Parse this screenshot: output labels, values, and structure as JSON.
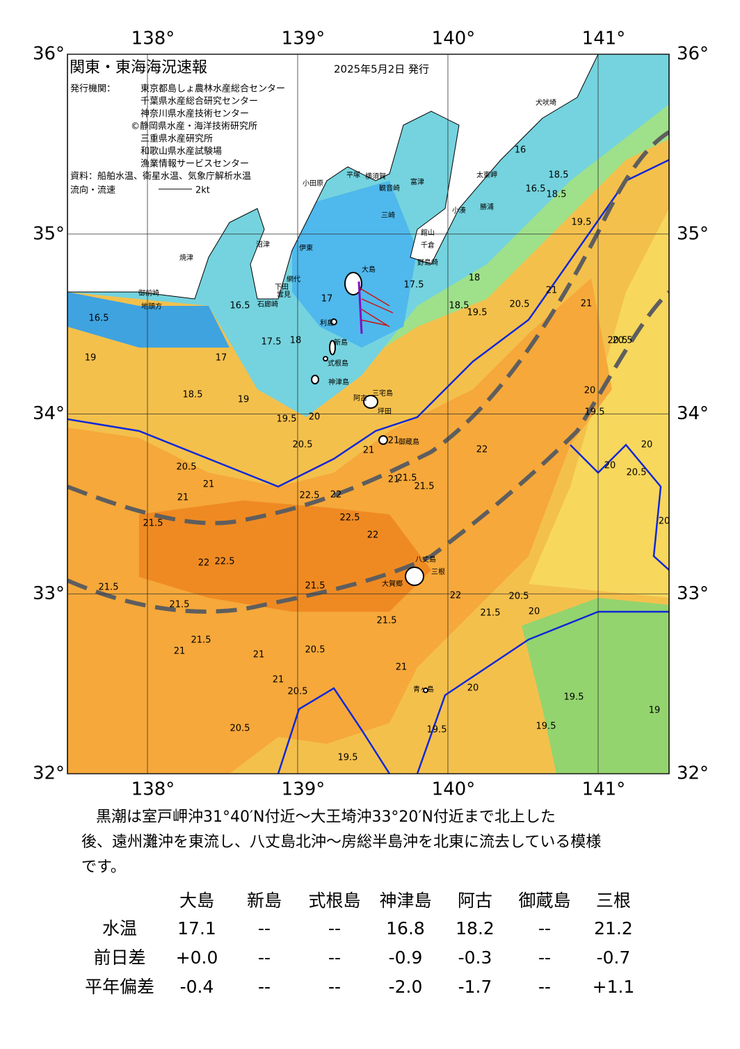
{
  "header": {
    "title": "関東・東海海況速報",
    "date": "2025年5月2日 発行",
    "issuers_label": "発行機関：",
    "issuers": [
      "東京都島しょ農林水産総合センター",
      "千葉県水産総合研究センター",
      "神奈川県水産技術センター",
      "©静岡県水産・海洋技術研究所",
      "三重県水産研究所",
      "和歌山県水産試験場",
      "漁業情報サービスセンター"
    ],
    "source": "資料：船舶水温、衛星水温、気象庁解析水温",
    "legend_label": "流向・流速",
    "legend_scale": "2kt"
  },
  "map": {
    "lon_ticks": [
      {
        "value": 138,
        "label": "138°"
      },
      {
        "value": 139,
        "label": "139°"
      },
      {
        "value": 140,
        "label": "140°"
      },
      {
        "value": 141,
        "label": "141°"
      }
    ],
    "lat_ticks": [
      {
        "value": 36,
        "label": "36°"
      },
      {
        "value": 35,
        "label": "35°"
      },
      {
        "value": 34,
        "label": "34°"
      },
      {
        "value": 33,
        "label": "33°"
      },
      {
        "value": 32,
        "label": "32°"
      }
    ],
    "places": [
      "犬吠埼",
      "太東岬",
      "勝浦",
      "小湊",
      "館山",
      "千倉",
      "野島崎",
      "富津",
      "観音崎",
      "横須賀",
      "平塚",
      "小田原",
      "三崎",
      "大島",
      "利島",
      "新島",
      "式根島",
      "神津島",
      "三宅島",
      "阿古",
      "坪田",
      "御蔵島",
      "八丈島",
      "大賀郷",
      "三根",
      "青ヶ島",
      "沼津",
      "伊東",
      "網代",
      "下田",
      "石廊崎",
      "雲見",
      "焼津",
      "地頭方",
      "御前崎"
    ],
    "contour_labels": [
      16.5,
      16.5,
      16,
      16.5,
      18.5,
      18.5,
      19.5,
      17,
      17.5,
      18,
      18.5,
      19.5,
      20.5,
      21,
      21,
      20.5,
      19,
      17.5,
      18,
      17,
      18.5,
      19,
      19.5,
      20,
      20.5,
      21,
      21,
      22,
      21.5,
      21,
      20.5,
      21,
      21.5,
      22,
      22.5,
      22.5,
      22,
      22.5,
      22,
      21.5,
      21.5,
      21.5,
      21.5,
      21,
      21,
      20.5,
      21.5,
      21,
      20.5,
      19.5,
      19.5,
      20,
      19.5,
      19.5,
      19,
      20,
      20.5,
      20,
      20.5,
      19.5,
      20,
      22,
      21.5,
      20.5,
      20,
      21.5,
      21,
      21,
      20.5,
      20
    ]
  },
  "summary": [
    "黒潮は室戸岬沖31°40′N付近～大王埼沖33°20′N付近まで北上した",
    "後、遠州灘沖を東流し、八丈島北沖～房総半島沖を北東に流去している模様",
    "です。"
  ],
  "table": {
    "columns": [
      "大島",
      "新島",
      "式根島",
      "神津島",
      "阿古",
      "御蔵島",
      "三根"
    ],
    "rows": [
      {
        "label": "水温",
        "values": [
          "17.1",
          "--",
          "--",
          "16.8",
          "18.2",
          "--",
          "21.2"
        ]
      },
      {
        "label": "前日差",
        "values": [
          "+0.0",
          "--",
          "--",
          "-0.9",
          "-0.3",
          "--",
          "-0.7"
        ]
      },
      {
        "label": "平年偏差",
        "values": [
          "-0.4",
          "--",
          "--",
          "-2.0",
          "-1.7",
          "--",
          "+1.1"
        ]
      }
    ]
  }
}
